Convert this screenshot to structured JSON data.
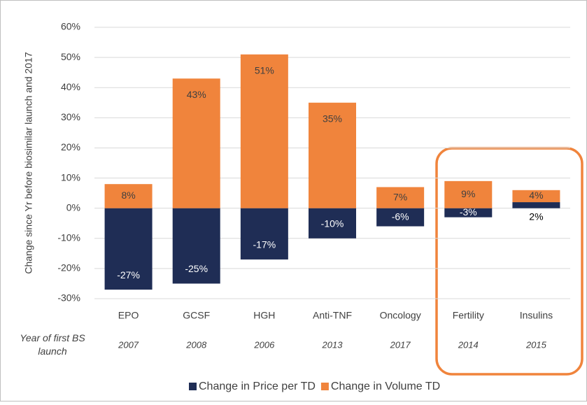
{
  "chart_data": {
    "type": "stacked_bar",
    "y_label": "Change since Yr before biosimilar launch and 2017",
    "categories": [
      "EPO",
      "GCSF",
      "HGH",
      "Anti-TNF",
      "Oncology",
      "Fertility",
      "Insulins"
    ],
    "launch_label": "Year of first BS launch",
    "launch_years": [
      "2007",
      "2008",
      "2006",
      "2013",
      "2017",
      "2014",
      "2015"
    ],
    "series": [
      {
        "name": "Change in Price per TD",
        "color": "#1f2d55",
        "values": [
          -27,
          -25,
          -17,
          -10,
          -6,
          -3,
          2
        ],
        "value_labels": [
          "-27%",
          "-25%",
          "-17%",
          "-10%",
          "-6%",
          "-3%",
          "2%"
        ]
      },
      {
        "name": "Change in Volume TD",
        "color": "#f0843c",
        "values": [
          8,
          43,
          51,
          35,
          7,
          9,
          4
        ],
        "value_labels": [
          "8%",
          "43%",
          "51%",
          "35%",
          "7%",
          "9%",
          "4%"
        ]
      }
    ],
    "ylim": [
      -30,
      60
    ],
    "yticks": [
      {
        "value": -30,
        "label": "-30%"
      },
      {
        "value": -20,
        "label": "-20%"
      },
      {
        "value": -10,
        "label": "-10%"
      },
      {
        "value": 0,
        "label": "0%"
      },
      {
        "value": 10,
        "label": "10%"
      },
      {
        "value": 20,
        "label": "20%"
      },
      {
        "value": 30,
        "label": "30%"
      },
      {
        "value": 40,
        "label": "40%"
      },
      {
        "value": 50,
        "label": "50%"
      },
      {
        "value": 60,
        "label": "60%"
      }
    ],
    "grid": true,
    "legend": "bottom"
  }
}
